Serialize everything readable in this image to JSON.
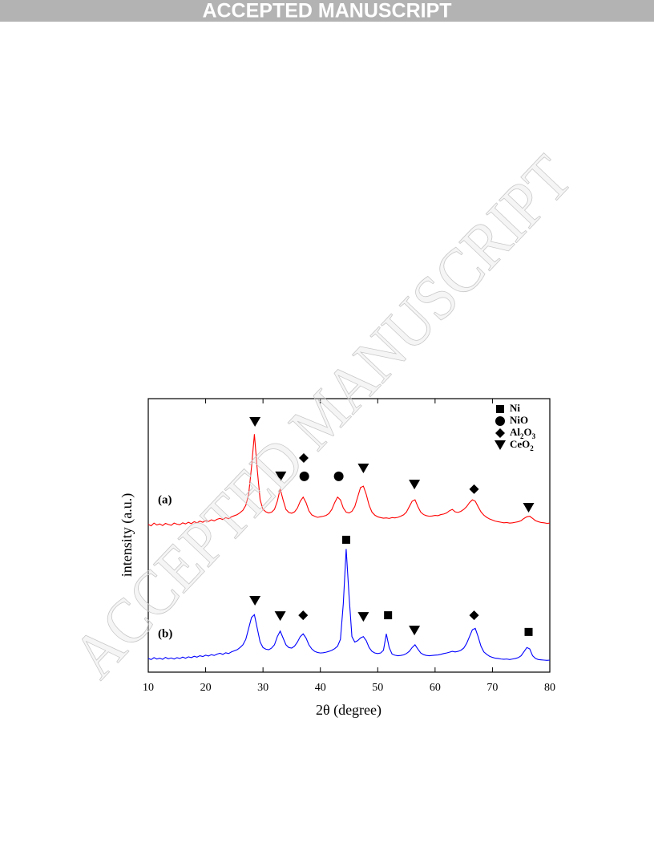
{
  "header": {
    "banner": "ACCEPTED MANUSCRIPT"
  },
  "watermark": "ACCEPTED MANUSCRIPT",
  "chart_data": {
    "type": "line",
    "xlabel": "2θ (degree)",
    "ylabel": "intensity (a.u.)",
    "xlim": [
      10,
      80
    ],
    "xticks": [
      10,
      20,
      30,
      40,
      50,
      60,
      70,
      80
    ],
    "ylim": [
      0,
      100
    ],
    "x": [
      10,
      10.5,
      11,
      11.5,
      12,
      12.5,
      13,
      13.5,
      14,
      14.5,
      15,
      15.5,
      16,
      16.5,
      17,
      17.5,
      18,
      18.5,
      19,
      19.5,
      20,
      20.5,
      21,
      21.5,
      22,
      22.5,
      23,
      23.5,
      24,
      24.5,
      25,
      25.5,
      26,
      26.5,
      27,
      27.5,
      28,
      28.5,
      29,
      29.5,
      30,
      30.5,
      31,
      31.5,
      32,
      32.5,
      33,
      33.5,
      34,
      34.5,
      35,
      35.5,
      36,
      36.5,
      37,
      37.5,
      38,
      38.5,
      39,
      39.5,
      40,
      40.5,
      41,
      41.5,
      42,
      42.5,
      43,
      43.5,
      44,
      44.5,
      45,
      45.5,
      46,
      46.5,
      47,
      47.5,
      48,
      48.5,
      49,
      49.5,
      50,
      50.5,
      51,
      51.5,
      52,
      52.5,
      53,
      53.5,
      54,
      54.5,
      55,
      55.5,
      56,
      56.5,
      57,
      57.5,
      58,
      58.5,
      59,
      59.5,
      60,
      60.5,
      61,
      61.5,
      62,
      62.5,
      63,
      63.5,
      64,
      64.5,
      65,
      65.5,
      66,
      66.5,
      67,
      67.5,
      68,
      68.5,
      69,
      69.5,
      70,
      70.5,
      71,
      71.5,
      72,
      72.5,
      73,
      73.5,
      74,
      74.5,
      75,
      75.5,
      76,
      76.5,
      77,
      77.5,
      78,
      78.5,
      79,
      79.5,
      80
    ],
    "phases": [
      {
        "name": "Ni",
        "shape": "square"
      },
      {
        "name": "NiO",
        "shape": "circle"
      },
      {
        "name": "Al2O3",
        "shape": "diamond"
      },
      {
        "name": "CeO2",
        "shape": "triangle-down"
      }
    ],
    "series": [
      {
        "name": "(a)",
        "color": "#ff0000",
        "values": [
          54,
          53.5,
          54.5,
          53.8,
          54.2,
          53.6,
          54.4,
          54,
          53.7,
          54.5,
          54.1,
          53.9,
          54.6,
          54.2,
          54.8,
          54.3,
          55,
          54.6,
          55.2,
          54.8,
          55.4,
          55.1,
          55.7,
          55.3,
          55.9,
          56.2,
          55.8,
          56.5,
          56.1,
          56.8,
          57.2,
          57.6,
          58.3,
          59.2,
          61,
          65,
          75,
          87,
          74,
          63,
          59.5,
          58.6,
          58.2,
          58.5,
          59.5,
          62.5,
          67,
          63,
          59.5,
          58.4,
          58.1,
          58.6,
          60,
          62.5,
          64,
          62,
          59,
          57.5,
          57,
          56.6,
          56.8,
          57,
          57.3,
          58,
          59.5,
          62,
          64,
          63,
          60,
          58.5,
          58.2,
          58.8,
          60.5,
          64,
          67.5,
          68,
          65,
          61,
          58.5,
          57.4,
          56.8,
          56.5,
          56.3,
          56.4,
          56.2,
          56.5,
          56.4,
          56.6,
          57,
          57.5,
          58.5,
          60.5,
          62.5,
          63,
          60.5,
          58.5,
          57.6,
          57.2,
          57,
          57.1,
          57.3,
          57.2,
          57.6,
          57.8,
          58.2,
          59,
          59.5,
          58.6,
          58.4,
          58.8,
          59.5,
          60.5,
          62,
          63,
          62.5,
          60.5,
          58.6,
          57.4,
          56.6,
          56,
          55.6,
          55.2,
          55,
          54.8,
          54.6,
          54.7,
          54.5,
          54.6,
          54.8,
          55,
          55.4,
          56.2,
          56.8,
          57,
          56.2,
          55.4,
          55,
          54.7,
          54.6,
          54.4,
          54.5
        ],
        "markers": [
          {
            "shape": "triangle-down",
            "x": 28.6,
            "y": 91.5
          },
          {
            "shape": "triangle-down",
            "x": 33.1,
            "y": 71.6
          },
          {
            "shape": "diamond",
            "x": 37.1,
            "y": 78.3
          },
          {
            "shape": "circle",
            "x": 37.2,
            "y": 71.6
          },
          {
            "shape": "circle",
            "x": 43.2,
            "y": 71.6
          },
          {
            "shape": "triangle-down",
            "x": 47.5,
            "y": 74.5
          },
          {
            "shape": "triangle-down",
            "x": 56.4,
            "y": 68.6
          },
          {
            "shape": "diamond",
            "x": 66.8,
            "y": 66.9
          },
          {
            "shape": "triangle-down",
            "x": 76.3,
            "y": 60.1
          }
        ]
      },
      {
        "name": "(b)",
        "color": "#0000ff",
        "values": [
          5,
          4.6,
          5.3,
          4.8,
          5.1,
          4.7,
          5.4,
          4.9,
          5.2,
          4.8,
          5.3,
          5,
          5.5,
          5.1,
          5.6,
          5.3,
          5.8,
          5.5,
          6,
          5.7,
          6.2,
          5.9,
          6.4,
          6.1,
          6.6,
          6.9,
          6.5,
          7.1,
          6.8,
          7.4,
          7.8,
          8.2,
          9,
          10,
          12,
          16,
          20,
          21,
          16,
          11,
          9,
          8.4,
          8.2,
          8.8,
          10,
          13,
          15,
          12.5,
          10,
          9,
          8.8,
          9.5,
          11,
          13,
          14,
          12.5,
          10,
          8.5,
          7.6,
          7.2,
          7,
          7.1,
          7.3,
          7.6,
          8,
          8.6,
          9.5,
          12,
          25,
          45,
          28,
          13,
          11,
          11.5,
          12.5,
          13,
          11.5,
          9,
          7.6,
          7,
          6.8,
          7,
          8,
          14,
          9,
          6.6,
          6.2,
          6,
          6.1,
          6.3,
          6.8,
          7.6,
          9,
          10,
          8.4,
          7,
          6.4,
          6.1,
          6,
          6.1,
          6.2,
          6.3,
          6.5,
          6.8,
          7,
          7.3,
          7.6,
          7.4,
          7.6,
          8,
          8.8,
          10.5,
          13,
          15.5,
          16,
          13,
          9.5,
          7.4,
          6.5,
          5.8,
          5.4,
          5.1,
          5,
          4.8,
          4.7,
          4.8,
          4.6,
          4.8,
          5,
          5.3,
          6,
          7.5,
          9,
          8.5,
          6,
          5,
          4.6,
          4.5,
          4.4,
          4.3,
          4.4
        ],
        "markers": [
          {
            "shape": "triangle-down",
            "x": 28.6,
            "y": 26.1
          },
          {
            "shape": "triangle-down",
            "x": 33,
            "y": 20.5
          },
          {
            "shape": "diamond",
            "x": 37,
            "y": 20.8
          },
          {
            "shape": "square",
            "x": 44.5,
            "y": 48.4
          },
          {
            "shape": "triangle-down",
            "x": 47.5,
            "y": 20.2
          },
          {
            "shape": "square",
            "x": 51.8,
            "y": 20.8
          },
          {
            "shape": "triangle-down",
            "x": 56.4,
            "y": 15.2
          },
          {
            "shape": "diamond",
            "x": 66.8,
            "y": 20.8
          },
          {
            "shape": "square",
            "x": 76.3,
            "y": 14.7
          }
        ]
      }
    ]
  }
}
